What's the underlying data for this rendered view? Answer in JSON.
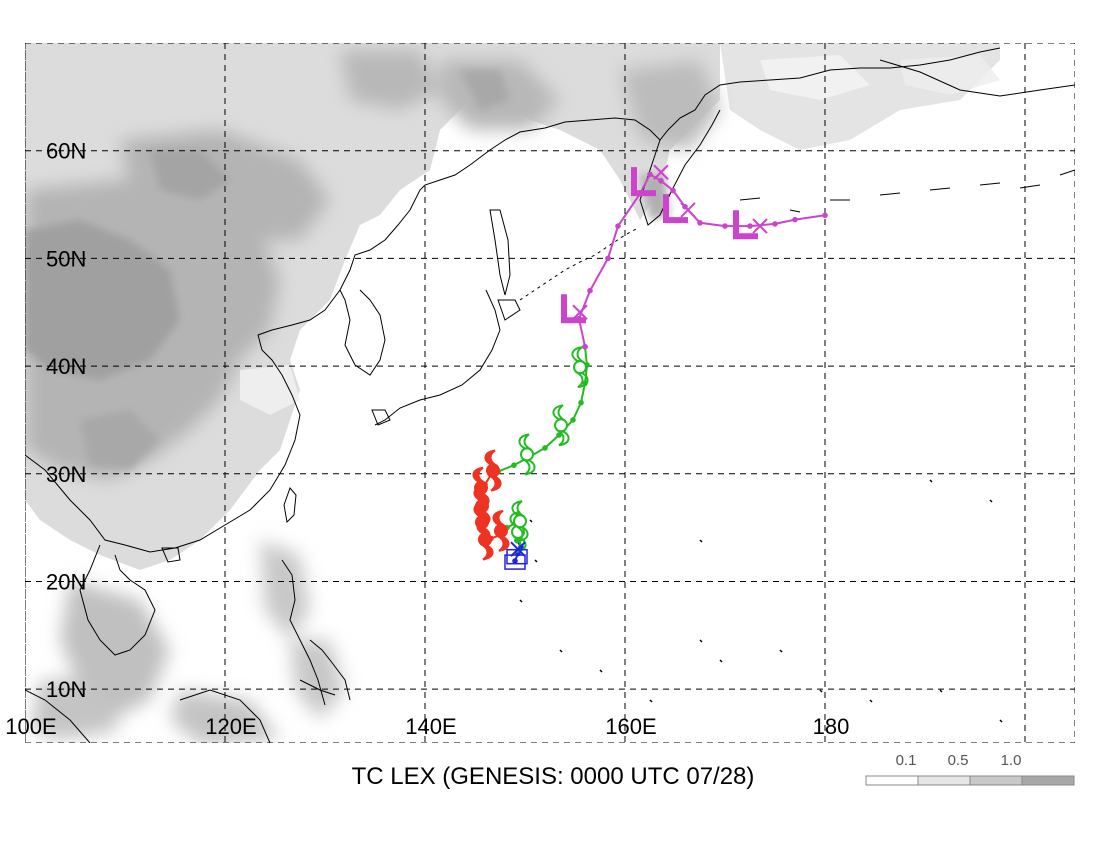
{
  "title": "TC LEX (GENESIS: 0000 UTC 07/28)",
  "map": {
    "lon_range": [
      100,
      205
    ],
    "lat_range": [
      5,
      70
    ],
    "lat_labels": [
      "60N",
      "50N",
      "40N",
      "30N",
      "20N",
      "10N"
    ],
    "lat_values": [
      60,
      50,
      40,
      30,
      20,
      10
    ],
    "lon_labels": [
      "100E",
      "120E",
      "140E",
      "160E",
      "180"
    ],
    "lon_values": [
      100,
      120,
      140,
      160,
      180
    ],
    "grid": "dashed"
  },
  "colorbar": {
    "labels": [
      "0.1",
      "0.5",
      "1.0"
    ],
    "colors": [
      "#ffffff",
      "#e6e6e6",
      "#c8c8c8",
      "#a8a8a8"
    ]
  },
  "track": {
    "colors": {
      "disturbance": "#2222dd",
      "storm": "#22bb22",
      "typhoon": "#ee3322",
      "extratropical": "#cc44cc"
    },
    "segments": [
      {
        "stage": "disturbance",
        "points": [
          [
            149.0,
            21.9
          ],
          [
            149.3,
            22.6
          ],
          [
            149.6,
            23.2
          ],
          [
            149.2,
            23.8
          ]
        ]
      },
      {
        "stage": "storm",
        "points": [
          [
            149.2,
            23.8
          ],
          [
            149.5,
            24.6
          ],
          [
            149.0,
            25.4
          ],
          [
            148.2,
            25.0
          ],
          [
            147.5,
            24.3
          ]
        ]
      },
      {
        "stage": "typhoon",
        "points": [
          [
            147.5,
            24.3
          ],
          [
            146.6,
            24.0
          ],
          [
            145.9,
            24.2
          ],
          [
            145.6,
            25.2
          ],
          [
            145.5,
            26.5
          ],
          [
            145.8,
            27.8
          ],
          [
            146.0,
            29.0
          ],
          [
            146.6,
            29.9
          ],
          [
            147.3,
            30.2
          ]
        ]
      },
      {
        "stage": "storm",
        "points": [
          [
            147.3,
            30.2
          ],
          [
            148.9,
            30.8
          ],
          [
            150.5,
            31.6
          ],
          [
            152.0,
            32.4
          ],
          [
            153.4,
            33.6
          ],
          [
            154.8,
            35.0
          ],
          [
            155.6,
            36.6
          ],
          [
            156.0,
            38.4
          ],
          [
            156.2,
            40.1
          ],
          [
            156.0,
            41.8
          ]
        ]
      },
      {
        "stage": "extratropical",
        "points": [
          [
            156.0,
            41.8
          ],
          [
            155.4,
            44.4
          ],
          [
            156.5,
            47.0
          ],
          [
            158.3,
            50.0
          ],
          [
            159.3,
            53.0
          ],
          [
            161.5,
            56.0
          ],
          [
            162.5,
            57.8
          ],
          [
            163.6,
            57.2
          ],
          [
            164.8,
            56.3
          ],
          [
            166.0,
            54.8
          ],
          [
            167.5,
            53.3
          ],
          [
            170.0,
            53.0
          ],
          [
            172.5,
            53.0
          ],
          [
            175.0,
            53.2
          ],
          [
            177.0,
            53.6
          ],
          [
            180.0,
            54.0
          ]
        ]
      }
    ],
    "typhoon_symbols": [
      [
        146.8,
        30.3
      ],
      [
        145.6,
        28.7
      ],
      [
        145.7,
        27.0
      ],
      [
        145.7,
        25.5
      ],
      [
        146.0,
        23.9
      ],
      [
        147.6,
        24.7
      ]
    ],
    "storm_symbols": [
      [
        149.3,
        24.6
      ],
      [
        149.5,
        25.6
      ],
      [
        150.2,
        31.8
      ],
      [
        153.6,
        34.5
      ],
      [
        155.5,
        39.9
      ]
    ],
    "disturbance_symbols": [
      [
        149.0,
        21.8
      ],
      [
        149.2,
        22.3
      ]
    ],
    "low_symbols": [
      [
        154.8,
        45.0
      ],
      [
        161.8,
        56.8
      ],
      [
        165.0,
        54.3
      ],
      [
        172.0,
        52.8
      ]
    ],
    "cross_symbols": [
      [
        149.3,
        23.0
      ],
      [
        155.5,
        45.0
      ],
      [
        163.6,
        58.0
      ],
      [
        166.3,
        54.5
      ],
      [
        173.5,
        53.0
      ]
    ]
  }
}
